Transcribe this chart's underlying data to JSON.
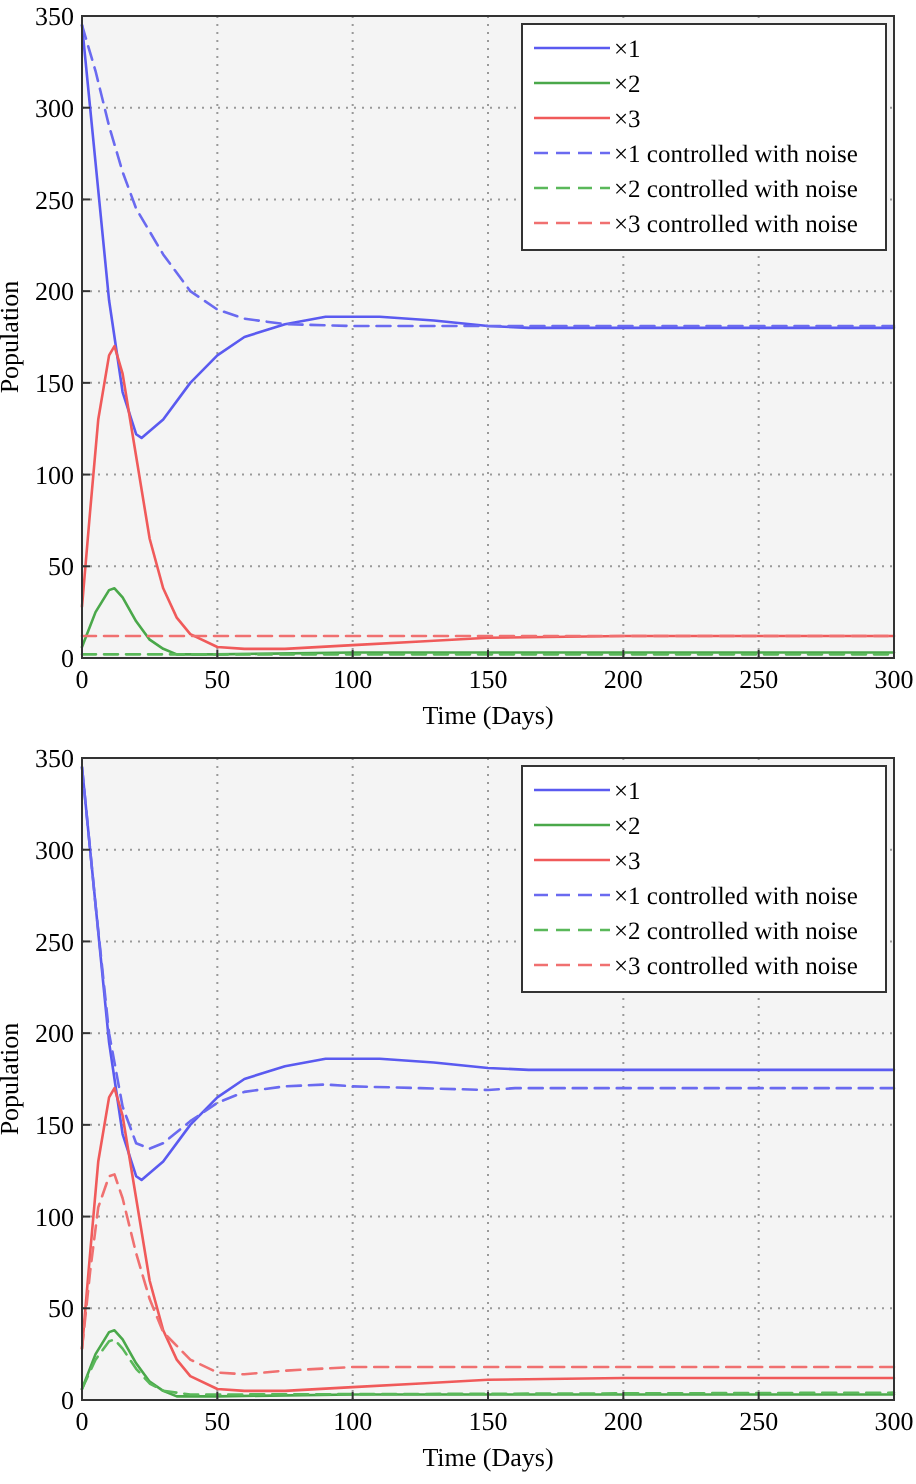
{
  "chart_data": [
    {
      "type": "line",
      "xlabel": "Time (Days)",
      "ylabel": "Population",
      "xlim": [
        0,
        300
      ],
      "ylim": [
        0,
        350
      ],
      "xticks": [
        0,
        50,
        100,
        150,
        200,
        250,
        300
      ],
      "yticks": [
        0,
        50,
        100,
        150,
        200,
        250,
        300,
        350
      ],
      "grid": true,
      "legend": "top right",
      "series": [
        {
          "name": "×1",
          "color": "#5a5af0",
          "line_style": "solid",
          "x": [
            0,
            5,
            10,
            15,
            20,
            22,
            30,
            40,
            50,
            60,
            75,
            90,
            100,
            110,
            130,
            150,
            165,
            200,
            300
          ],
          "values": [
            345,
            270,
            195,
            145,
            122,
            120,
            130,
            150,
            165,
            175,
            182,
            186,
            186,
            186,
            184,
            181,
            180,
            180,
            180
          ]
        },
        {
          "name": "×2",
          "color": "#4aa84a",
          "line_style": "solid",
          "x": [
            0,
            5,
            10,
            12,
            15,
            20,
            25,
            30,
            35,
            50,
            100,
            150,
            300
          ],
          "values": [
            6,
            25,
            37,
            38,
            33,
            20,
            10,
            5,
            2,
            2,
            3,
            3,
            3
          ]
        },
        {
          "name": "×3",
          "color": "#f05a5a",
          "line_style": "solid",
          "x": [
            0,
            3,
            6,
            10,
            12,
            15,
            20,
            25,
            30,
            35,
            40,
            50,
            60,
            75,
            100,
            125,
            150,
            200,
            300
          ],
          "values": [
            28,
            80,
            130,
            165,
            170,
            155,
            110,
            65,
            38,
            22,
            13,
            6,
            5,
            5,
            7,
            9,
            11,
            12,
            12
          ]
        },
        {
          "name": "×1 controlled with noise",
          "color": "#6a6af0",
          "line_style": "dashed",
          "x": [
            0,
            5,
            10,
            15,
            20,
            30,
            40,
            50,
            60,
            75,
            100,
            150,
            300
          ],
          "values": [
            345,
            320,
            290,
            265,
            245,
            220,
            200,
            190,
            185,
            182,
            181,
            181,
            181
          ]
        },
        {
          "name": "×2 controlled with noise",
          "color": "#5ab85a",
          "line_style": "dashed",
          "x": [
            0,
            300
          ],
          "values": [
            2,
            2
          ]
        },
        {
          "name": "×3 controlled with noise",
          "color": "#f07070",
          "line_style": "dashed",
          "x": [
            0,
            300
          ],
          "values": [
            12,
            12
          ]
        }
      ]
    },
    {
      "type": "line",
      "xlabel": "Time (Days)",
      "ylabel": "Population",
      "xlim": [
        0,
        300
      ],
      "ylim": [
        0,
        350
      ],
      "xticks": [
        0,
        50,
        100,
        150,
        200,
        250,
        300
      ],
      "yticks": [
        0,
        50,
        100,
        150,
        200,
        250,
        300,
        350
      ],
      "grid": true,
      "legend": "top right",
      "series": [
        {
          "name": "×1",
          "color": "#5a5af0",
          "line_style": "solid",
          "x": [
            0,
            5,
            10,
            15,
            20,
            22,
            30,
            40,
            50,
            60,
            75,
            90,
            100,
            110,
            130,
            150,
            165,
            200,
            300
          ],
          "values": [
            345,
            270,
            195,
            145,
            122,
            120,
            130,
            150,
            165,
            175,
            182,
            186,
            186,
            186,
            184,
            181,
            180,
            180,
            180
          ]
        },
        {
          "name": "×2",
          "color": "#4aa84a",
          "line_style": "solid",
          "x": [
            0,
            5,
            10,
            12,
            15,
            20,
            25,
            30,
            35,
            50,
            100,
            150,
            300
          ],
          "values": [
            6,
            25,
            37,
            38,
            33,
            20,
            10,
            5,
            2,
            2,
            3,
            3,
            3
          ]
        },
        {
          "name": "×3",
          "color": "#f05a5a",
          "line_style": "solid",
          "x": [
            0,
            3,
            6,
            10,
            12,
            15,
            20,
            25,
            30,
            35,
            40,
            50,
            60,
            75,
            100,
            125,
            150,
            200,
            300
          ],
          "values": [
            28,
            80,
            130,
            165,
            170,
            155,
            110,
            65,
            38,
            22,
            13,
            6,
            5,
            5,
            7,
            9,
            11,
            12,
            12
          ]
        },
        {
          "name": "×1 controlled with noise",
          "color": "#6a6af0",
          "line_style": "dashed",
          "x": [
            0,
            5,
            10,
            15,
            20,
            25,
            30,
            40,
            50,
            60,
            75,
            90,
            100,
            125,
            150,
            160,
            200,
            300
          ],
          "values": [
            345,
            270,
            200,
            160,
            140,
            137,
            140,
            152,
            162,
            168,
            171,
            172,
            171,
            170,
            169,
            170,
            170,
            170
          ]
        },
        {
          "name": "×2 controlled with noise",
          "color": "#5ab85a",
          "line_style": "dashed",
          "x": [
            0,
            5,
            10,
            12,
            15,
            20,
            25,
            30,
            40,
            50,
            300
          ],
          "values": [
            6,
            22,
            32,
            33,
            28,
            17,
            9,
            5,
            3,
            3,
            4
          ]
        },
        {
          "name": "×3 controlled with noise",
          "color": "#f07070",
          "line_style": "dashed",
          "x": [
            0,
            3,
            6,
            10,
            12,
            15,
            20,
            25,
            30,
            40,
            50,
            60,
            75,
            100,
            300
          ],
          "values": [
            28,
            70,
            105,
            122,
            123,
            110,
            80,
            55,
            37,
            22,
            15,
            14,
            16,
            18,
            18
          ]
        }
      ]
    }
  ]
}
